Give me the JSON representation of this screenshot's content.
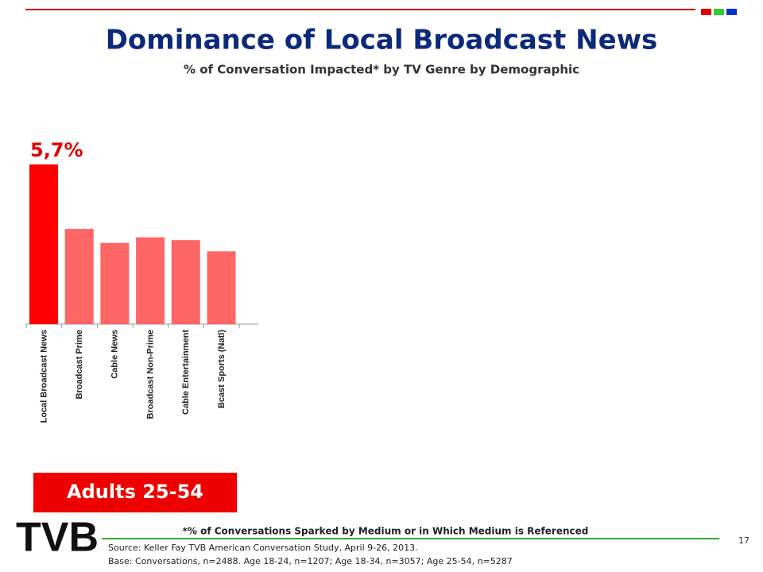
{
  "header": {
    "title": "Dominance of Local Broadcast News",
    "subtitle": "% of Conversation Impacted* by TV Genre by Demographic"
  },
  "chart_data": {
    "type": "bar",
    "categories": [
      "Local Broadcast News",
      "Broadcast Prime",
      "Cable News",
      "Broadcast Non-Prime",
      "Cable Entertainment",
      "Bcast Sports (Natl)"
    ],
    "values": [
      5.7,
      3.4,
      2.9,
      3.1,
      3.0,
      2.6
    ],
    "value_labels": [
      "5,7%",
      null,
      null,
      null,
      null,
      null
    ],
    "colors": [
      "#ff0000",
      "#ff6666",
      "#ff6666",
      "#ff6666",
      "#ff6666",
      "#ff6666"
    ]
  },
  "segment_label": "Adults 25-54",
  "footnote": "*% of Conversations Sparked by Medium or in Which Medium is Referenced",
  "source": "Source: Keller Fay TVB American Conversation Study, April 9-26, 2013.",
  "base": "Base: Conversations, n=2488.   Age 18-24, n=1207; Age 18-34, n=3057; Age 25-54, n=5287",
  "page_number": "17",
  "logo": "TVB"
}
